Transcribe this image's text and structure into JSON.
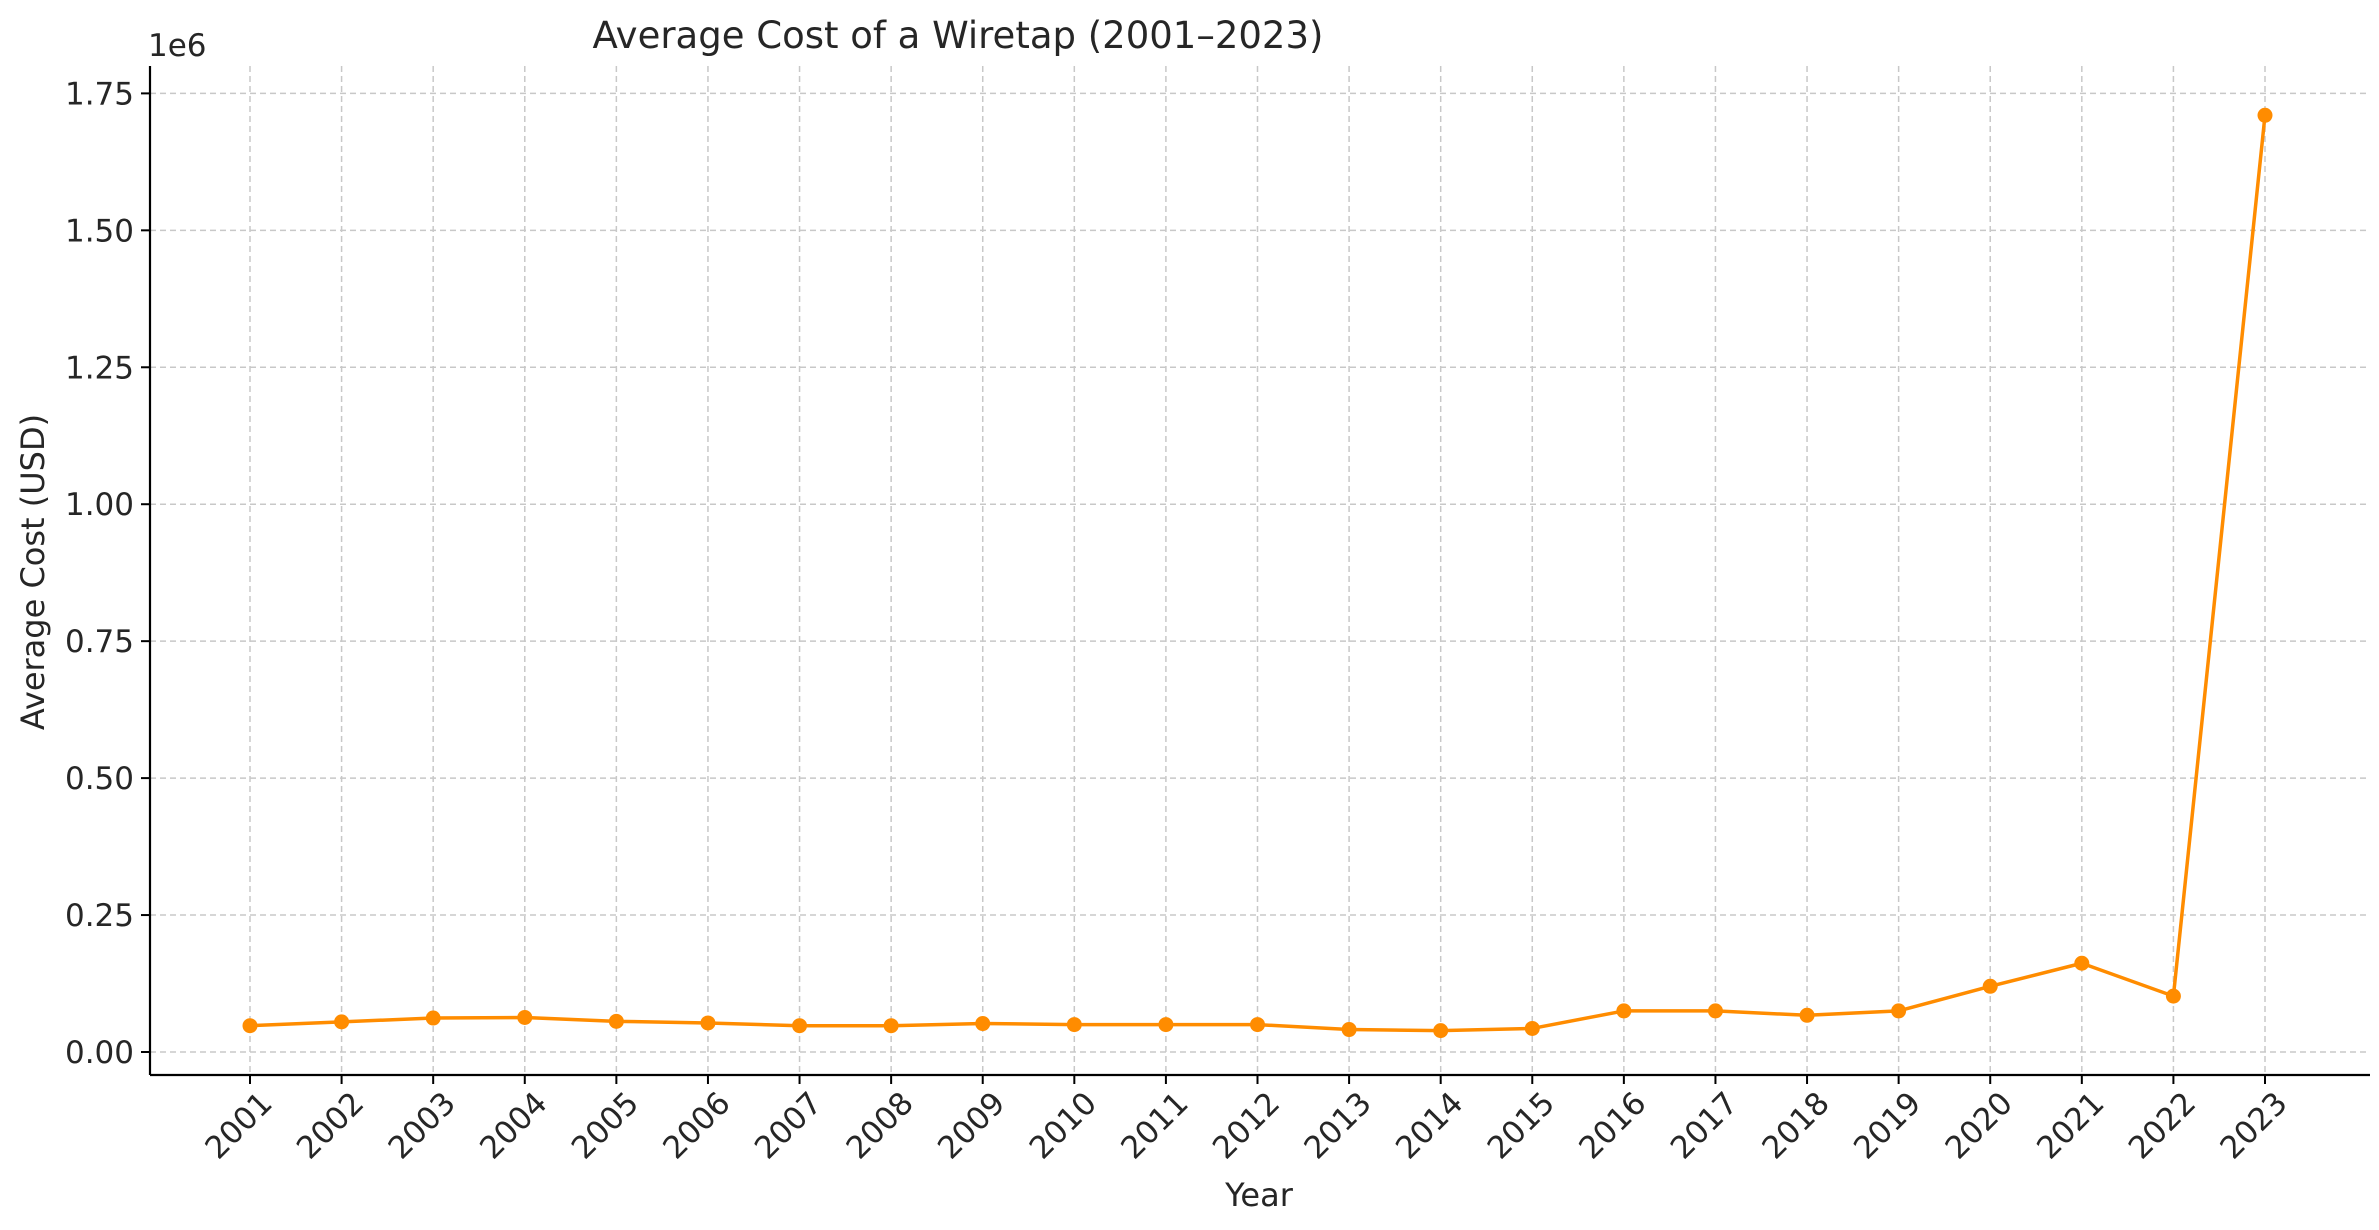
{
  "chart_data": {
    "type": "line",
    "title": "Average Cost of a Wiretap (2001–2023)",
    "xlabel": "Year",
    "ylabel": "Average Cost (USD)",
    "y_offset_label": "1e6",
    "x": [
      "2001",
      "2002",
      "2003",
      "2004",
      "2005",
      "2006",
      "2007",
      "2008",
      "2009",
      "2010",
      "2011",
      "2012",
      "2013",
      "2014",
      "2015",
      "2016",
      "2017",
      "2018",
      "2019",
      "2020",
      "2021",
      "2022",
      "2023"
    ],
    "series": [
      {
        "values": [
          48000,
          55000,
          62000,
          63000,
          56000,
          53000,
          48000,
          48000,
          52000,
          50000,
          50000,
          50000,
          41000,
          39000,
          43000,
          75000,
          75000,
          67000,
          75000,
          120000,
          162000,
          102000,
          1710000
        ],
        "color": "#ff8c00",
        "marker": "circle"
      }
    ],
    "ylim": [
      -42000,
      1800000
    ],
    "yticks": [
      0,
      250000,
      500000,
      750000,
      1000000,
      1250000,
      1500000,
      1750000
    ],
    "ytick_labels": [
      "0.00",
      "0.25",
      "0.50",
      "0.75",
      "1.00",
      "1.25",
      "1.50",
      "1.75"
    ],
    "x_tick_rotation": 45,
    "grid": true
  }
}
